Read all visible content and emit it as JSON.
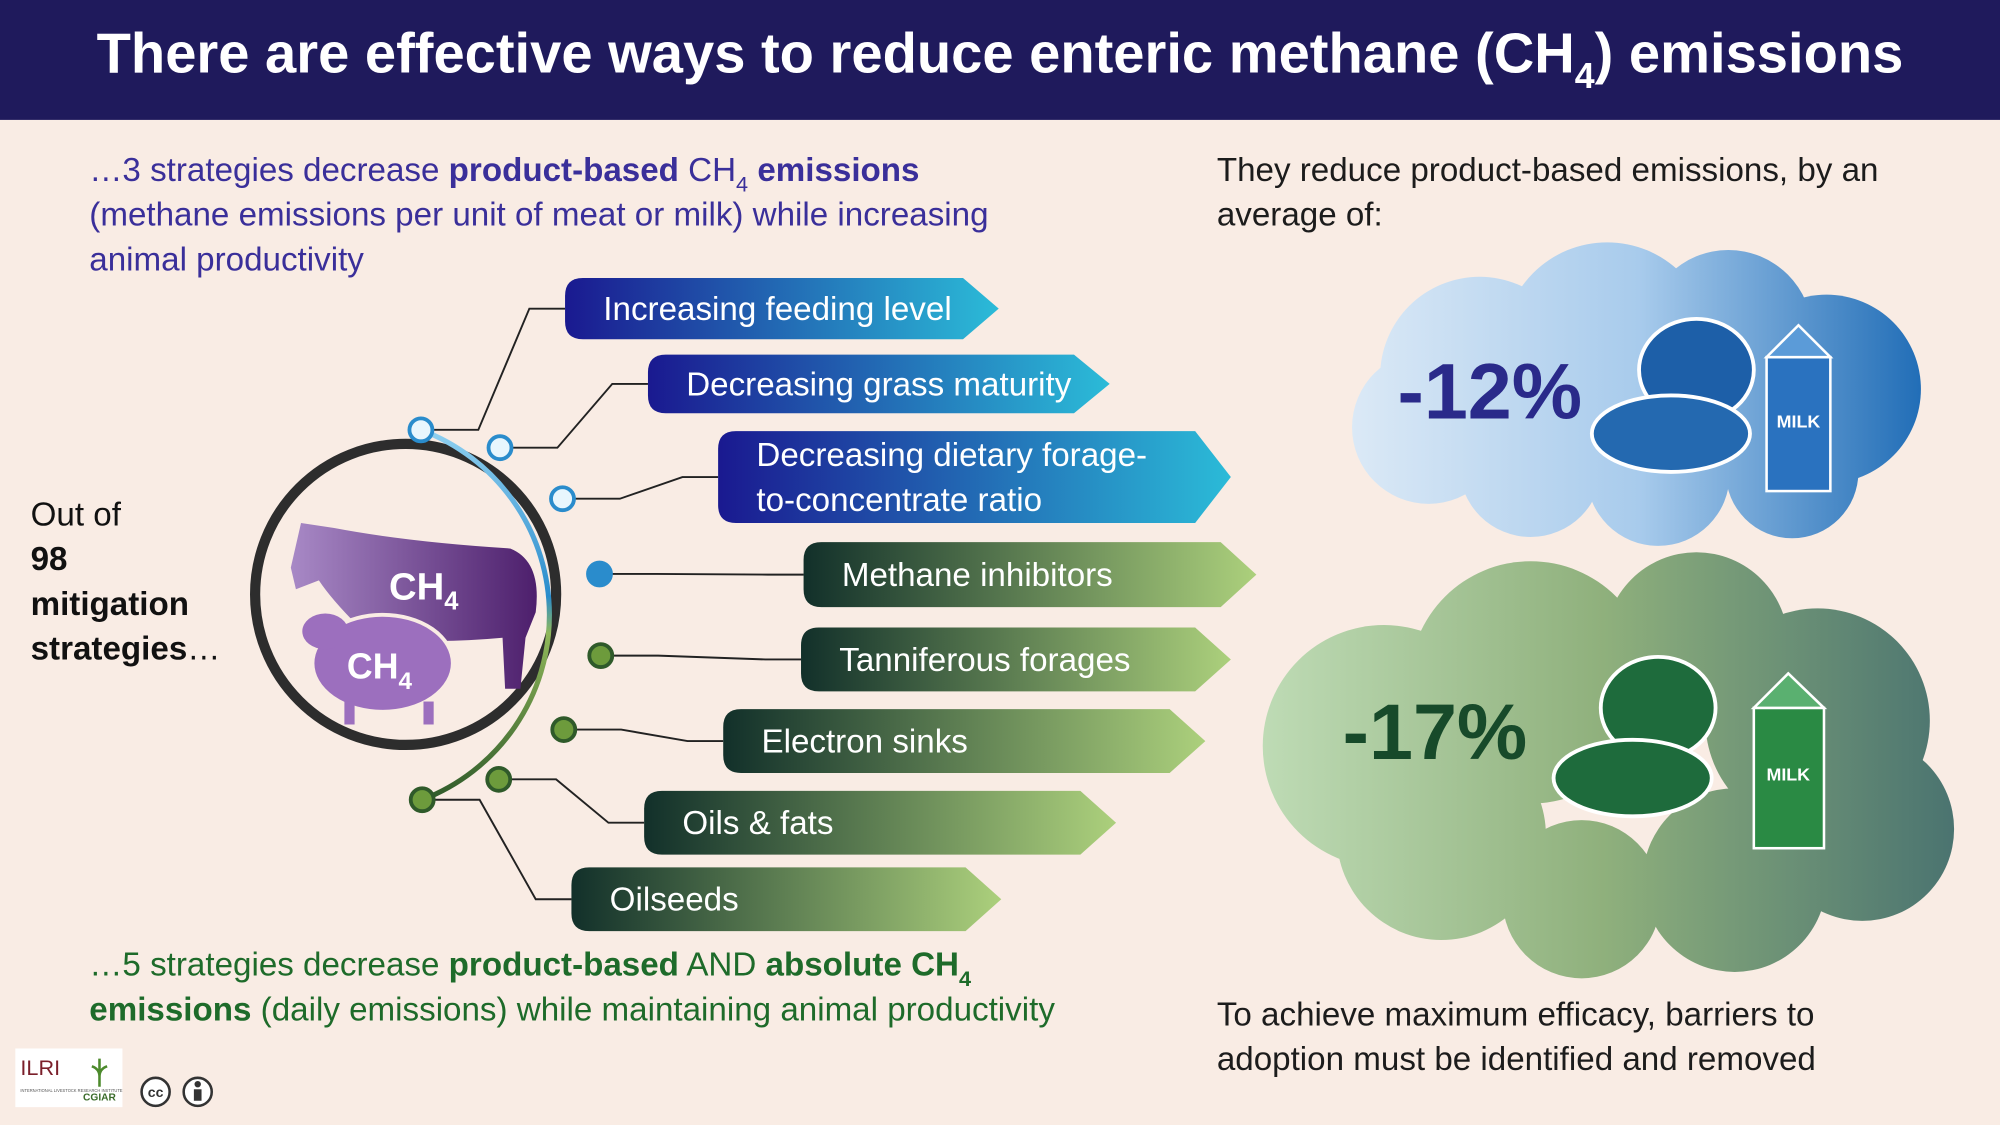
{
  "header": {
    "title": [
      "There are effective ways to reduce enteric methane (CH",
      "4",
      ") emissions"
    ]
  },
  "top_note": {
    "lines": [
      [
        "…3 strategies decrease ",
        "product-based",
        " CH",
        "4",
        " emissions"
      ],
      [
        "(methane emissions per unit of meat or milk) while increasing"
      ],
      [
        "animal productivity"
      ]
    ]
  },
  "left": {
    "lines": [
      "Out of",
      "98",
      "mitigation",
      "strategies"
    ],
    "ellipsis": "…"
  },
  "animals": {
    "cow": [
      "CH",
      "4"
    ],
    "sheep": [
      "CH",
      "4"
    ]
  },
  "product_based": [
    [
      "Increasing feeding level"
    ],
    [
      "Decreasing grass maturity"
    ],
    [
      "Decreasing dietary forage-",
      "to-concentrate ratio"
    ]
  ],
  "product_and_absolute": [
    [
      "Methane inhibitors"
    ],
    [
      "Tanniferous forages"
    ],
    [
      "Electron sinks"
    ],
    [
      "Oils & fats"
    ],
    [
      "Oilseeds"
    ]
  ],
  "right_note": {
    "lines": [
      "They reduce product-based emissions, by an",
      "average of:"
    ]
  },
  "results": {
    "product_based": "-12%",
    "product_and_absolute": "-17%",
    "milk_label": "MILK"
  },
  "bottom_note": {
    "lines": [
      [
        "…5 strategies decrease ",
        "product-based",
        " AND ",
        "absolute CH",
        "4"
      ],
      [
        "emissions",
        " (daily emissions) while maintaining animal productivity"
      ]
    ]
  },
  "closing": {
    "lines": [
      "To achieve maximum efficacy, barriers to",
      "adoption must be identified and removed"
    ]
  },
  "logos": {
    "ilri": "ILRI",
    "ilri_full": "INTERNATIONAL LIVESTOCK RESEARCH INSTITUTE",
    "cgiar": "CGIAR",
    "cc": "cc"
  }
}
